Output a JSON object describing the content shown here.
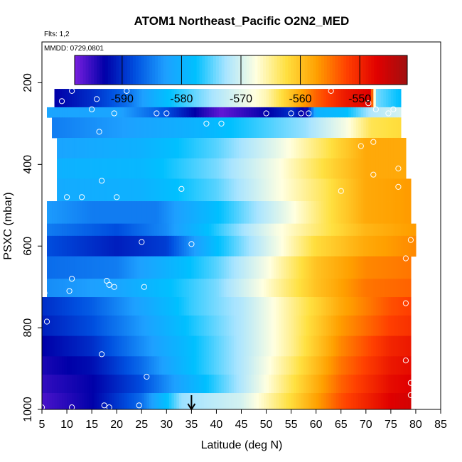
{
  "chart_data": {
    "type": "heatmap",
    "title": "ATOM1 Northeast_Pacific O2N2_MED",
    "flts_label": "Flts: 1,2",
    "mmdd_label": "MMDD: 0729,0801",
    "xlabel": "Latitude (deg N)",
    "ylabel": "PSXC (mbar)",
    "xlim": [
      5,
      85
    ],
    "ylim": [
      1000,
      100
    ],
    "x_ticks": [
      "5",
      "10",
      "15",
      "20",
      "25",
      "30",
      "35",
      "40",
      "45",
      "50",
      "55",
      "60",
      "65",
      "70",
      "75",
      "80",
      "85"
    ],
    "y_ticks": [
      "200",
      "400",
      "600",
      "800",
      "1000"
    ],
    "colorbar": {
      "range": [
        -598,
        -542
      ],
      "ticks": [
        "-590",
        "-580",
        "-570",
        "-560",
        "-550"
      ],
      "colors": [
        "#7a1fe0",
        "#0000a8",
        "#0050e0",
        "#1ea0ff",
        "#00c0ff",
        "#a8e4ff",
        "#ffffe0",
        "#ffe040",
        "#ffa000",
        "#ff4000",
        "#e00000",
        "#a01010"
      ]
    },
    "marker_latitude": 35,
    "bands": [
      {
        "p_top": 215,
        "p_bot": 260,
        "lat_start": 7.5,
        "lat_end": 77,
        "stops": [
          [
            7.5,
            -593
          ],
          [
            15,
            -590
          ],
          [
            22,
            -586
          ],
          [
            30,
            -578
          ],
          [
            40,
            -572
          ],
          [
            50,
            -566
          ],
          [
            55,
            -560
          ],
          [
            60,
            -554
          ],
          [
            66,
            -549
          ],
          [
            71,
            -547
          ],
          [
            72,
            -574
          ],
          [
            77,
            -578
          ]
        ]
      },
      {
        "p_top": 260,
        "p_bot": 285,
        "lat_start": 6,
        "lat_end": 77,
        "stops": [
          [
            6,
            -582
          ],
          [
            20,
            -582
          ],
          [
            30,
            -588
          ],
          [
            37,
            -594
          ],
          [
            41,
            -597
          ],
          [
            50,
            -593
          ],
          [
            55,
            -590
          ],
          [
            58,
            -594
          ],
          [
            60,
            -580
          ],
          [
            66,
            -578
          ],
          [
            71,
            -572
          ],
          [
            77,
            -570
          ]
        ]
      },
      {
        "p_top": 285,
        "p_bot": 335,
        "lat_start": 7,
        "lat_end": 77,
        "stops": [
          [
            7,
            -585
          ],
          [
            20,
            -583
          ],
          [
            35,
            -580
          ],
          [
            45,
            -577
          ],
          [
            58,
            -573
          ],
          [
            66,
            -568
          ],
          [
            71,
            -563
          ],
          [
            77,
            -562
          ]
        ]
      },
      {
        "p_top": 335,
        "p_bot": 385,
        "lat_start": 8,
        "lat_end": 78,
        "stops": [
          [
            8,
            -582
          ],
          [
            25,
            -580
          ],
          [
            40,
            -575
          ],
          [
            52,
            -569
          ],
          [
            62,
            -563
          ],
          [
            70,
            -558
          ],
          [
            78,
            -558
          ]
        ]
      },
      {
        "p_top": 385,
        "p_bot": 435,
        "lat_start": 8,
        "lat_end": 78,
        "stops": [
          [
            8,
            -580
          ],
          [
            25,
            -579
          ],
          [
            40,
            -574
          ],
          [
            52,
            -568
          ],
          [
            62,
            -562
          ],
          [
            70,
            -558
          ],
          [
            78,
            -558
          ]
        ]
      },
      {
        "p_top": 435,
        "p_bot": 490,
        "lat_start": 8,
        "lat_end": 79,
        "stops": [
          [
            8,
            -581
          ],
          [
            25,
            -580
          ],
          [
            40,
            -575
          ],
          [
            52,
            -568
          ],
          [
            62,
            -563
          ],
          [
            70,
            -558
          ],
          [
            79,
            -557
          ]
        ]
      },
      {
        "p_top": 490,
        "p_bot": 545,
        "lat_start": 6,
        "lat_end": 79,
        "stops": [
          [
            6,
            -583
          ],
          [
            15,
            -585
          ],
          [
            28,
            -585
          ],
          [
            40,
            -578
          ],
          [
            52,
            -570
          ],
          [
            62,
            -563
          ],
          [
            70,
            -558
          ],
          [
            79,
            -557
          ]
        ]
      },
      {
        "p_top": 545,
        "p_bot": 575,
        "lat_start": 6,
        "lat_end": 80,
        "stops": [
          [
            6,
            -585
          ],
          [
            20,
            -588
          ],
          [
            30,
            -584
          ],
          [
            42,
            -575
          ],
          [
            52,
            -568
          ],
          [
            62,
            -563
          ],
          [
            70,
            -559
          ],
          [
            80,
            -557
          ]
        ]
      },
      {
        "p_top": 575,
        "p_bot": 625,
        "lat_start": 6,
        "lat_end": 80,
        "stops": [
          [
            6,
            -588
          ],
          [
            20,
            -591
          ],
          [
            30,
            -589
          ],
          [
            40,
            -578
          ],
          [
            50,
            -570
          ],
          [
            60,
            -562
          ],
          [
            70,
            -558
          ],
          [
            80,
            -556
          ]
        ]
      },
      {
        "p_top": 625,
        "p_bot": 680,
        "lat_start": 6,
        "lat_end": 79,
        "stops": [
          [
            6,
            -586
          ],
          [
            20,
            -585
          ],
          [
            30,
            -580
          ],
          [
            40,
            -575
          ],
          [
            50,
            -568
          ],
          [
            60,
            -560
          ],
          [
            70,
            -556
          ],
          [
            79,
            -555
          ]
        ]
      },
      {
        "p_top": 680,
        "p_bot": 725,
        "lat_start": 6,
        "lat_end": 79,
        "stops": [
          [
            6,
            -584
          ],
          [
            20,
            -582
          ],
          [
            30,
            -578
          ],
          [
            40,
            -574
          ],
          [
            50,
            -567
          ],
          [
            60,
            -560
          ],
          [
            70,
            -555
          ],
          [
            79,
            -554
          ]
        ]
      },
      {
        "p_top": 725,
        "p_bot": 770,
        "lat_start": 5,
        "lat_end": 79,
        "stops": [
          [
            5,
            -590
          ],
          [
            15,
            -587
          ],
          [
            25,
            -582
          ],
          [
            35,
            -576
          ],
          [
            45,
            -572
          ],
          [
            55,
            -565
          ],
          [
            65,
            -558
          ],
          [
            75,
            -553
          ],
          [
            79,
            -552
          ]
        ]
      },
      {
        "p_top": 770,
        "p_bot": 820,
        "lat_start": 5,
        "lat_end": 79,
        "stops": [
          [
            5,
            -591
          ],
          [
            15,
            -588
          ],
          [
            25,
            -583
          ],
          [
            35,
            -577
          ],
          [
            45,
            -572
          ],
          [
            55,
            -565
          ],
          [
            65,
            -557
          ],
          [
            75,
            -552
          ],
          [
            79,
            -551
          ]
        ]
      },
      {
        "p_top": 820,
        "p_bot": 870,
        "lat_start": 5,
        "lat_end": 79,
        "stops": [
          [
            5,
            -593
          ],
          [
            15,
            -590
          ],
          [
            25,
            -584
          ],
          [
            35,
            -578
          ],
          [
            45,
            -572
          ],
          [
            55,
            -565
          ],
          [
            65,
            -556
          ],
          [
            75,
            -550
          ],
          [
            79,
            -549
          ]
        ]
      },
      {
        "p_top": 870,
        "p_bot": 915,
        "lat_start": 5,
        "lat_end": 79,
        "stops": [
          [
            5,
            -594
          ],
          [
            15,
            -592
          ],
          [
            25,
            -586
          ],
          [
            35,
            -578
          ],
          [
            45,
            -572
          ],
          [
            55,
            -564
          ],
          [
            65,
            -555
          ],
          [
            75,
            -549
          ],
          [
            79,
            -548
          ]
        ]
      },
      {
        "p_top": 915,
        "p_bot": 960,
        "lat_start": 5,
        "lat_end": 79,
        "stops": [
          [
            5,
            -595
          ],
          [
            15,
            -593
          ],
          [
            25,
            -588
          ],
          [
            35,
            -580
          ],
          [
            45,
            -572
          ],
          [
            55,
            -563
          ],
          [
            65,
            -554
          ],
          [
            75,
            -548
          ],
          [
            79,
            -547
          ]
        ]
      },
      {
        "p_top": 960,
        "p_bot": 1000,
        "lat_start": 5,
        "lat_end": 79,
        "stops": [
          [
            5,
            -596
          ],
          [
            15,
            -593
          ],
          [
            25,
            -586
          ],
          [
            33,
            -573
          ],
          [
            45,
            -570
          ],
          [
            55,
            -562
          ],
          [
            65,
            -553
          ],
          [
            75,
            -547
          ],
          [
            79,
            -546
          ]
        ]
      }
    ],
    "observations": [
      [
        9,
        245
      ],
      [
        11,
        220
      ],
      [
        15,
        265
      ],
      [
        16,
        240
      ],
      [
        19.5,
        275
      ],
      [
        22,
        220
      ],
      [
        28,
        275
      ],
      [
        30,
        275
      ],
      [
        38,
        300
      ],
      [
        41,
        300
      ],
      [
        50,
        275
      ],
      [
        55,
        275
      ],
      [
        57,
        275
      ],
      [
        58.5,
        275
      ],
      [
        63,
        220
      ],
      [
        70.5,
        250
      ],
      [
        72,
        265
      ],
      [
        74.5,
        275
      ],
      [
        75.5,
        265
      ],
      [
        16.5,
        320
      ],
      [
        69,
        355
      ],
      [
        71.5,
        345
      ],
      [
        71.5,
        425
      ],
      [
        76.5,
        410
      ],
      [
        76.5,
        455
      ],
      [
        65,
        465
      ],
      [
        33,
        460
      ],
      [
        17,
        440
      ],
      [
        10,
        480
      ],
      [
        13,
        480
      ],
      [
        20,
        480
      ],
      [
        25,
        590
      ],
      [
        35,
        595
      ],
      [
        78,
        630
      ],
      [
        79,
        585
      ],
      [
        5.5,
        715
      ],
      [
        11,
        680
      ],
      [
        10.5,
        710
      ],
      [
        18,
        685
      ],
      [
        18.5,
        695
      ],
      [
        19.5,
        700
      ],
      [
        25.5,
        700
      ],
      [
        78,
        740
      ],
      [
        6,
        785
      ],
      [
        17,
        865
      ],
      [
        26,
        920
      ],
      [
        78,
        880
      ],
      [
        79,
        935
      ],
      [
        79,
        965
      ],
      [
        5,
        995
      ],
      [
        11,
        995
      ],
      [
        17.5,
        990
      ],
      [
        18.5,
        995
      ],
      [
        24.5,
        990
      ]
    ]
  }
}
